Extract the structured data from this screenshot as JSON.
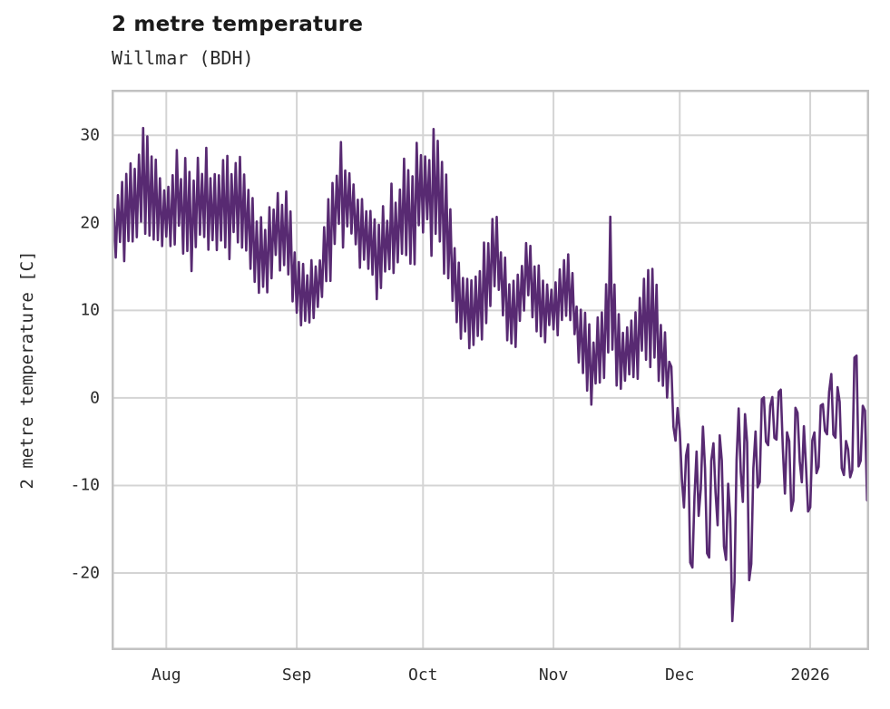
{
  "chart_data": {
    "type": "line",
    "title": "2 metre temperature",
    "subtitle": "Willmar (BDH)",
    "ylabel": "2 metre temperature [C]",
    "series_name": "2 metre temperature",
    "line_color": "#582a72",
    "grid_color": "#d4d4d4",
    "spine_color": "#c2c2c2",
    "text_color": "#2b2b2b",
    "grid": true,
    "legend": false,
    "x_axis": {
      "unit": "days from series start",
      "domain_days": [
        0,
        180
      ],
      "ticks": [
        {
          "t": 13,
          "label": "Aug"
        },
        {
          "t": 44,
          "label": "Sep"
        },
        {
          "t": 74,
          "label": "Oct"
        },
        {
          "t": 105,
          "label": "Nov"
        },
        {
          "t": 135,
          "label": "Dec"
        },
        {
          "t": 166,
          "label": "2026"
        }
      ]
    },
    "y_axis": {
      "lim": [
        -28.8,
        35.2
      ],
      "ticks": [
        30,
        20,
        10,
        0,
        -10,
        -20
      ]
    },
    "envelope_day_min_max": [
      [
        0,
        13.5,
        22
      ],
      [
        2,
        15,
        26
      ],
      [
        5,
        16,
        29
      ],
      [
        8,
        18,
        32
      ],
      [
        10,
        16,
        28
      ],
      [
        13,
        16,
        26
      ],
      [
        16,
        17,
        29
      ],
      [
        19,
        12,
        27
      ],
      [
        22,
        17,
        29
      ],
      [
        25,
        16,
        27
      ],
      [
        28,
        14,
        28
      ],
      [
        31,
        17,
        29
      ],
      [
        34,
        12,
        24
      ],
      [
        36,
        11,
        20
      ],
      [
        39,
        13,
        26
      ],
      [
        42,
        13,
        25
      ],
      [
        44,
        9,
        17
      ],
      [
        46,
        7,
        15
      ],
      [
        49,
        8,
        17
      ],
      [
        52,
        13,
        26
      ],
      [
        54,
        17,
        30.5
      ],
      [
        57,
        16,
        26
      ],
      [
        60,
        14,
        23
      ],
      [
        63,
        11,
        21
      ],
      [
        66,
        12,
        24
      ],
      [
        69,
        14,
        27
      ],
      [
        72,
        15,
        29
      ],
      [
        75,
        16,
        32
      ],
      [
        78,
        16,
        31
      ],
      [
        80,
        12,
        24
      ],
      [
        83,
        5,
        15
      ],
      [
        86,
        4,
        14
      ],
      [
        89,
        8,
        19
      ],
      [
        91,
        12,
        25
      ],
      [
        93,
        7,
        17
      ],
      [
        96,
        5,
        13
      ],
      [
        99,
        9,
        21
      ],
      [
        101,
        7,
        16
      ],
      [
        104,
        6,
        14
      ],
      [
        106,
        7,
        16
      ],
      [
        109,
        6,
        17
      ],
      [
        111,
        3,
        12
      ],
      [
        114,
        -1,
        8
      ],
      [
        117,
        2,
        14
      ],
      [
        118.5,
        5,
        21
      ],
      [
        120,
        1,
        11
      ],
      [
        123,
        0,
        9
      ],
      [
        126,
        2,
        14
      ],
      [
        128,
        3,
        17
      ],
      [
        131,
        1,
        9
      ],
      [
        133,
        -3,
        5
      ],
      [
        135,
        -10,
        -2
      ],
      [
        137,
        -17,
        -5
      ],
      [
        138.5,
        -24,
        -8
      ],
      [
        140,
        -14,
        -1
      ],
      [
        142,
        -21,
        -8
      ],
      [
        143.5,
        -16,
        2
      ],
      [
        145,
        -18,
        -6
      ],
      [
        147.5,
        -26,
        -12
      ],
      [
        149.5,
        -14,
        5.5
      ],
      [
        151.5,
        -21.5,
        -8
      ],
      [
        153,
        -14,
        -3
      ],
      [
        155,
        -7,
        2
      ],
      [
        157,
        -7,
        1.5
      ],
      [
        159,
        -5,
        1.5
      ],
      [
        161,
        -17.5,
        -3
      ],
      [
        163.5,
        -8,
        1.2
      ],
      [
        165,
        -15.5,
        -5
      ],
      [
        167,
        -10,
        -3
      ],
      [
        169,
        -6,
        0
      ],
      [
        171,
        -4,
        3.5
      ],
      [
        173,
        -8,
        0.5
      ],
      [
        175,
        -14,
        -4
      ],
      [
        176.5,
        -9,
        5.3
      ],
      [
        178,
        -8,
        5
      ],
      [
        179.5,
        -12,
        -4
      ],
      [
        180,
        -12,
        -11
      ]
    ],
    "samples_per_day": 2,
    "noise_seed": 11
  }
}
